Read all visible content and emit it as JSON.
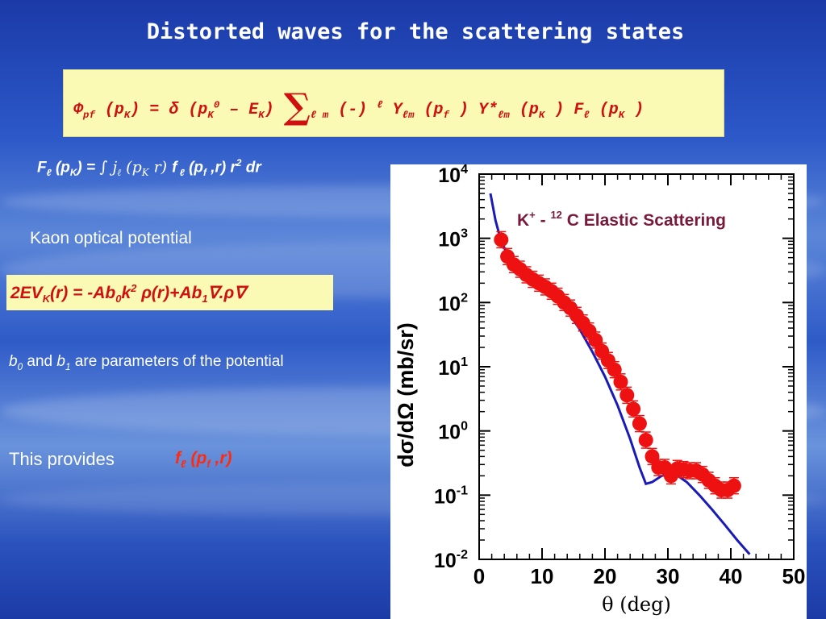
{
  "slide": {
    "title": "Distorted waves for the scattering states",
    "phi_eq": {
      "lhs": "Φ",
      "lhs_sub": "pf",
      "part1": " (p",
      "part1_sub": "K",
      "part2": ") = ",
      "delta": "δ",
      "part3": " (p",
      "part3_sub": "K",
      "part3_sup": "0",
      "part4": " – E",
      "part4_sub": "K",
      "part5": ") ",
      "sigma": "∑",
      "sigma_sub": "ℓ m",
      "part6": " (-) ",
      "part6_sup": "ℓ",
      "part7": " Y",
      "part7_sub": "ℓm",
      "part8": " (p",
      "part8_sub": "f",
      "part9": " ) Y*",
      "part9_sub": "ℓm",
      "part10": " (p",
      "part10_sub": "K",
      "part11": " ) F",
      "part11_sub": "ℓ",
      "part12": " (p",
      "part12_sub": "K",
      "part13": " )"
    },
    "f_eq": {
      "a": "F",
      "a_sub": "ℓ",
      "b": " (p",
      "b_sub": "K",
      "c": ") = ",
      "integral": "∫ j",
      "integral_sub": "ℓ",
      "d": " (p",
      "d_sub": "K",
      "e": " r) ",
      "f": "f",
      "f_sub": " ℓ",
      "g": " (p",
      "g_sub": "f",
      "h": " ,r) r",
      "h_sup": "2",
      "i": " dr"
    },
    "kaon_label": "Kaon optical potential",
    "pot_eq": {
      "a": "2EV",
      "a_sub": "K",
      "b": "(r) = -Ab",
      "b_sub": "0",
      "c": "k",
      "c_sup": "2",
      "d": " ρ(r)+Ab",
      "d_sub": "1",
      "e": "∇.ρ∇"
    },
    "params": {
      "b0": "b",
      "b0_sub": "0",
      "and": " and ",
      "b1": "b",
      "b1_sub": "1",
      "rest": " are parameters of the potential"
    },
    "provides": "This provides",
    "provides_f": {
      "f": "f",
      "f_sub": "ℓ",
      "rest": " (p",
      "rest_sub": "f",
      "end": " ,r)"
    },
    "colors": {
      "box": "#fafab4",
      "formula_red": "#d01010",
      "bg_blue": "#2c58c8"
    }
  },
  "chart_data": {
    "type": "scatter",
    "title": "K⁺ - ¹²C Elastic Scattering",
    "title_parts": {
      "k": "K",
      "k_sup": "+",
      "dash": " - ",
      "c_sup": "12",
      "rest": " C Elastic Scattering"
    },
    "xlabel": "θ (deg)",
    "ylabel": "dσ/dΩ (mb/sr)",
    "xlim": [
      0,
      50
    ],
    "ylim": [
      0.01,
      10000
    ],
    "yscale": "log",
    "x_ticks": [
      "0",
      "10",
      "20",
      "30",
      "40",
      "50"
    ],
    "y_ticks": [
      {
        "base": "10",
        "exp": "4"
      },
      {
        "base": "10",
        "exp": "3"
      },
      {
        "base": "10",
        "exp": "2"
      },
      {
        "base": "10",
        "exp": "1"
      },
      {
        "base": "10",
        "exp": "0"
      },
      {
        "base": "10",
        "exp": "-1"
      },
      {
        "base": "10",
        "exp": "-2"
      }
    ],
    "series": [
      {
        "kind": "points",
        "color": "#ee1111",
        "x": [
          3.5,
          4.5,
          5.5,
          6.5,
          7.5,
          8.5,
          9.5,
          10.5,
          11.5,
          12.5,
          13.5,
          14.5,
          15.5,
          16.5,
          17.5,
          18.5,
          19.5,
          20.5,
          21.5,
          22.5,
          23.5,
          24.5,
          25.5,
          26.5,
          27.5,
          28.5,
          29.5,
          30.5,
          31.5,
          32.5,
          33.5,
          34.5,
          35.5,
          36.5,
          37.5,
          38.5,
          39.5,
          40.5
        ],
        "y": [
          950,
          520,
          390,
          330,
          270,
          230,
          200,
          175,
          150,
          125,
          100,
          82,
          63,
          48,
          36,
          26,
          17.5,
          12.5,
          9,
          5.8,
          3.6,
          2.2,
          1.3,
          0.72,
          0.4,
          0.27,
          0.27,
          0.2,
          0.26,
          0.25,
          0.24,
          0.24,
          0.21,
          0.17,
          0.14,
          0.12,
          0.12,
          0.14
        ]
      },
      {
        "kind": "line",
        "color": "#1a1ab8",
        "x": [
          1.8,
          2.6,
          3.5,
          4.5,
          5.5,
          6.5,
          8,
          10,
          12,
          14,
          16,
          18,
          20,
          22,
          24,
          25.5,
          26.5,
          27.5,
          29,
          31,
          33,
          35,
          37,
          39,
          41,
          43
        ],
        "y": [
          5000,
          1900,
          900,
          560,
          420,
          345,
          270,
          190,
          125,
          75,
          38,
          17,
          7,
          2.5,
          0.75,
          0.27,
          0.15,
          0.16,
          0.2,
          0.22,
          0.16,
          0.1,
          0.06,
          0.035,
          0.02,
          0.012
        ]
      }
    ]
  }
}
